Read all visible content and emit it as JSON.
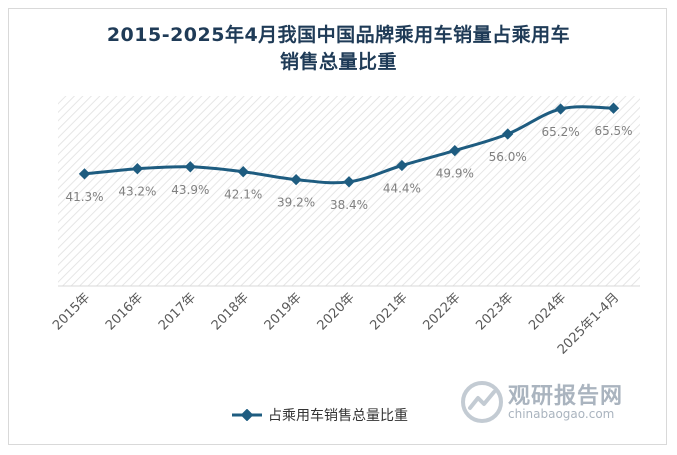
{
  "chart_data": {
    "type": "line",
    "title": "2015-2025年4月我国中国品牌乘用车销量占乘用车销售总量比重",
    "categories": [
      "2015年",
      "2016年",
      "2017年",
      "2018年",
      "2019年",
      "2020年",
      "2021年",
      "2022年",
      "2023年",
      "2024年",
      "2025年1-4月"
    ],
    "series": [
      {
        "name": "占乘用车销售总量比重",
        "values": [
          41.3,
          43.2,
          43.9,
          42.1,
          39.2,
          38.4,
          44.4,
          49.9,
          56.0,
          65.2,
          65.5
        ],
        "labels": [
          "41.3%",
          "43.2%",
          "43.9%",
          "42.1%",
          "39.2%",
          "38.4%",
          "44.4%",
          "49.9%",
          "56.0%",
          "65.2%",
          "65.5%"
        ]
      }
    ],
    "ylim": [
      0,
      70
    ],
    "grid": false,
    "legend": "bottom",
    "colors": {
      "line": "#1e5c80",
      "label": "#808080"
    }
  },
  "title_lines": [
    "2015-2025年4月我国中国品牌乘用车销量占乘用车",
    "销售总量比重"
  ],
  "watermark": {
    "cn": "观研报告网",
    "en": "chinabaogao.com"
  }
}
